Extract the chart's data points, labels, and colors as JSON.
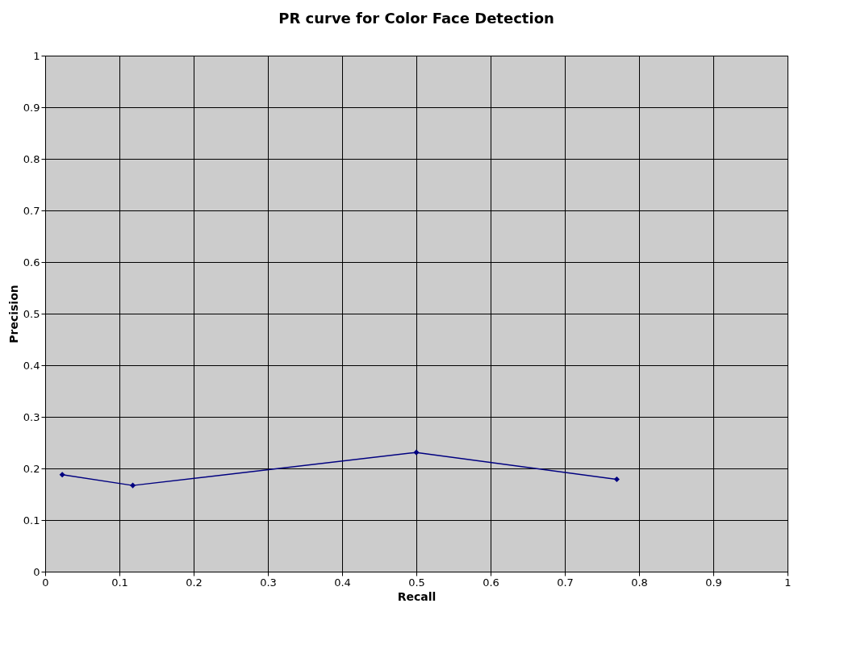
{
  "chart_data": {
    "type": "line",
    "title": "PR curve for Color Face Detection",
    "xlabel": "Recall",
    "ylabel": "Precision",
    "x": [
      0.023,
      0.118,
      0.5,
      0.77
    ],
    "series": [
      {
        "color": "#000080",
        "values": [
          0.188,
          0.167,
          0.231,
          0.179
        ]
      }
    ],
    "xlim": [
      0,
      1
    ],
    "ylim": [
      0,
      1
    ],
    "xticks": [
      0,
      0.1,
      0.2,
      0.3,
      0.4,
      0.5,
      0.6,
      0.7,
      0.8,
      0.9,
      1
    ],
    "yticks": [
      0,
      0.1,
      0.2,
      0.3,
      0.4,
      0.5,
      0.6,
      0.7,
      0.8,
      0.9,
      1
    ],
    "grid": true,
    "marker": "diamond",
    "line_style": "solid"
  }
}
